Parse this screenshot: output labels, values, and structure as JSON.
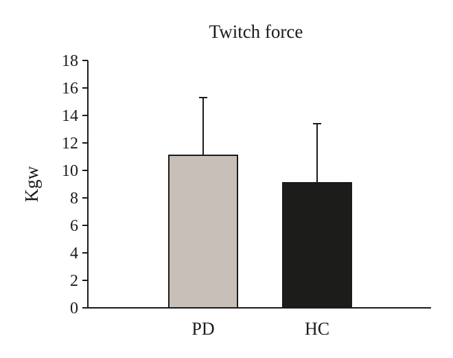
{
  "chart_data": {
    "type": "bar",
    "title": "Twitch force",
    "xlabel": "",
    "ylabel": "Kgw",
    "ylim": [
      0,
      18
    ],
    "yticks": [
      0,
      2,
      4,
      6,
      8,
      10,
      12,
      14,
      16,
      18
    ],
    "categories": [
      "PD",
      "HC"
    ],
    "values": [
      11.1,
      9.1
    ],
    "error_upper": [
      4.2,
      4.3
    ],
    "bar_colors": [
      "#c9bfb9",
      "#1c1d1a"
    ],
    "grid": false,
    "legend": "none"
  }
}
